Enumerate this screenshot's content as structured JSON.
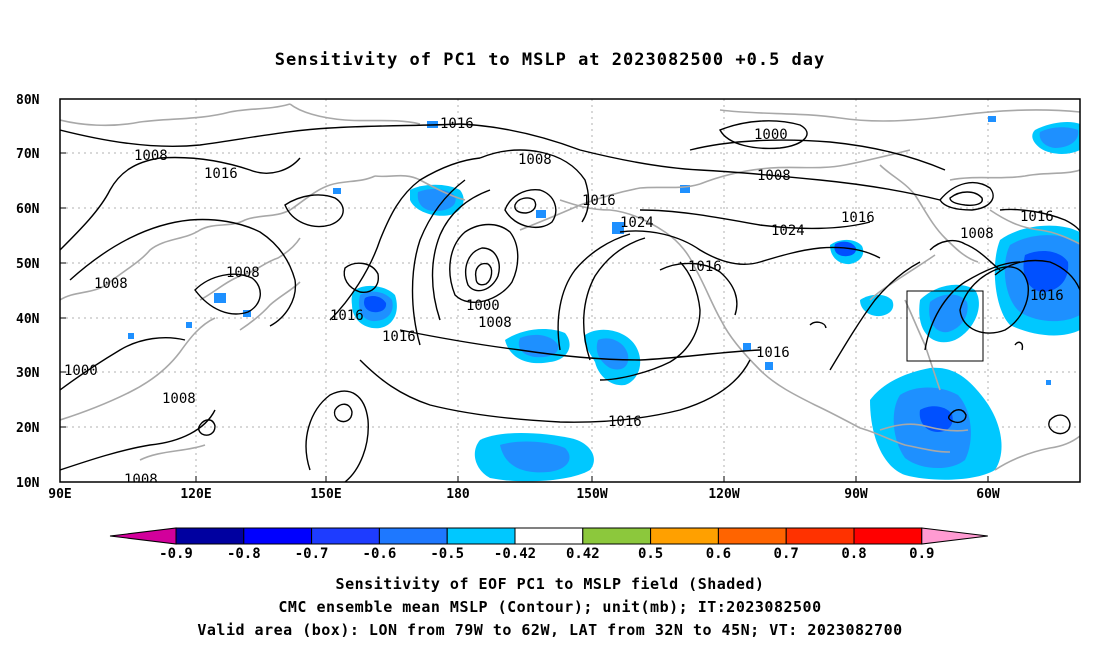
{
  "title": "Sensitivity of PC1 to MSLP at 2023082500 +0.5 day",
  "map": {
    "lat_labels": [
      "80N",
      "70N",
      "60N",
      "50N",
      "40N",
      "30N",
      "20N",
      "10N"
    ],
    "lon_labels": [
      "90E",
      "120E",
      "150E",
      "180",
      "150W",
      "120W",
      "90W",
      "60W"
    ],
    "contour_labels": [
      "1016",
      "1000",
      "1008",
      "1016",
      "1008",
      "1016",
      "1008",
      "1024",
      "1016",
      "1024",
      "1008",
      "1016",
      "1016",
      "1008",
      "1008",
      "1016",
      "1016",
      "1000",
      "1008",
      "1016",
      "1016",
      "1016",
      "1000",
      "1008",
      "1008"
    ],
    "colors": {
      "coastline": "#a8a8a8",
      "contour": "#000000",
      "gridline": "#b0b0b0",
      "shade_light": "#00c8ff",
      "shade_mid": "#1e90ff",
      "shade_dark": "#0050ff"
    },
    "valid_box": {
      "lon_min": -79,
      "lon_max": -62,
      "lat_min": 32,
      "lat_max": 45
    }
  },
  "colorbar": {
    "labels": [
      "-0.9",
      "-0.8",
      "-0.7",
      "-0.6",
      "-0.5",
      "-0.42",
      "0.42",
      "0.5",
      "0.6",
      "0.7",
      "0.8",
      "0.9"
    ],
    "colors": [
      "#d2009b",
      "#0000a0",
      "#0000ff",
      "#1e3cff",
      "#1e78ff",
      "#00c8ff",
      "#ffffff",
      "#8cc83c",
      "#ffa000",
      "#ff6400",
      "#ff3200",
      "#ff0000",
      "#ff9bd2"
    ]
  },
  "captions": {
    "line1": "Sensitivity of EOF PC1 to MSLP field (Shaded)",
    "line2": "CMC ensemble mean MSLP (Contour); unit(mb); IT:2023082500",
    "line3": "Valid area (box): LON from 79W to 62W, LAT from 32N to 45N; VT: 2023082700"
  }
}
